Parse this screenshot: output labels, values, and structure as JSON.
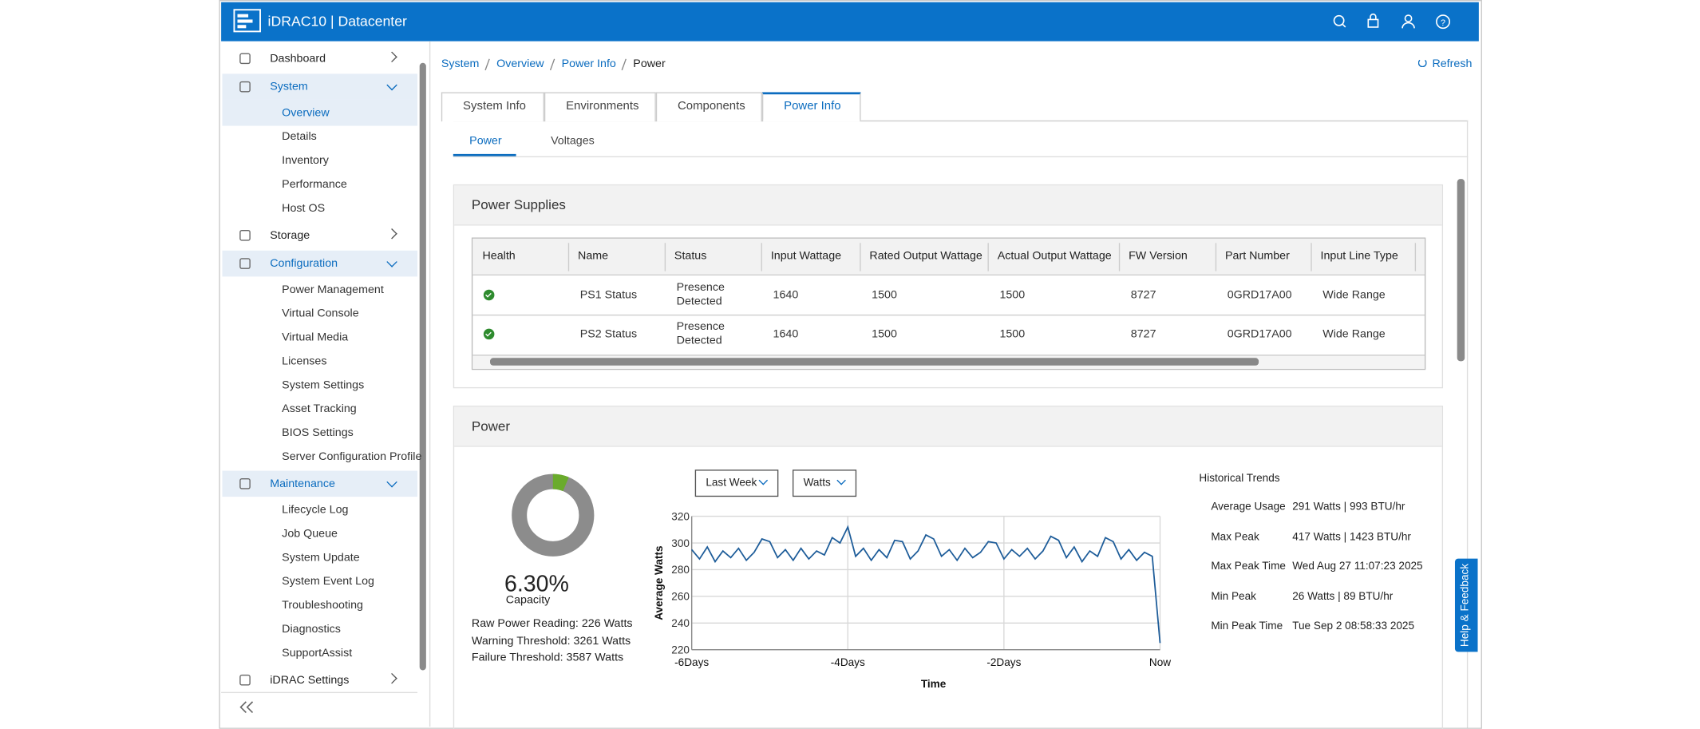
{
  "header": {
    "title": "iDRAC10 | Datacenter"
  },
  "sidebar": {
    "items": [
      {
        "label": "Dashboard"
      },
      {
        "label": "System",
        "children": [
          "Overview",
          "Details",
          "Inventory",
          "Performance",
          "Host OS"
        ]
      },
      {
        "label": "Storage"
      },
      {
        "label": "Configuration",
        "children": [
          "Power Management",
          "Virtual Console",
          "Virtual Media",
          "Licenses",
          "System Settings",
          "Asset Tracking",
          "BIOS Settings",
          "Server Configuration Profile"
        ]
      },
      {
        "label": "Maintenance",
        "children": [
          "Lifecycle Log",
          "Job Queue",
          "System Update",
          "System Event Log",
          "Troubleshooting",
          "Diagnostics",
          "SupportAssist"
        ]
      },
      {
        "label": "iDRAC Settings"
      }
    ]
  },
  "breadcrumb": [
    "System",
    "Overview",
    "Power Info",
    "Power"
  ],
  "refresh": "Refresh",
  "tabs": [
    "System Info",
    "Environments",
    "Components",
    "Power Info"
  ],
  "subtabs": [
    "Power",
    "Voltages"
  ],
  "power_supplies": {
    "title": "Power Supplies",
    "table": {
      "columns": [
        "Health",
        "Name",
        "Status",
        "Input Wattage",
        "Rated Output Wattage",
        "Actual Output Wattage",
        "FW Version",
        "Part Number",
        "Input Line Type"
      ],
      "rows": [
        [
          "PS1 Status",
          "Presence Detected",
          1640,
          1500,
          1500,
          8727,
          "0GRD17A00",
          "Wide Range"
        ],
        [
          "PS2 Status",
          "Presence Detected",
          1640,
          1500,
          1500,
          8727,
          "0GRD17A00",
          "Wide Range"
        ]
      ]
    }
  },
  "power": {
    "title": "Power",
    "capacity_label": "Capacity",
    "readings": [
      "Raw Power Reading: 226 Watts",
      "Warning Threshold: 3261 Watts",
      "Failure Threshold: 3587 Watts"
    ],
    "dropdowns": [
      "Last Week",
      "Watts"
    ],
    "trends": {
      "title": "Historical Trends",
      "rows": [
        [
          "Average Usage",
          "291 Watts | 993 BTU/hr"
        ],
        [
          "Max Peak",
          "417 Watts | 1423 BTU/hr"
        ],
        [
          "Max Peak Time",
          "Wed Aug 27 11:07:23 2025"
        ],
        [
          "Min Peak",
          "26 Watts | 89 BTU/hr"
        ],
        [
          "Min Peak Time",
          "Tue Sep 2 08:58:33 2025"
        ]
      ]
    }
  },
  "help": "Help & Feedback",
  "chart_data": [
    {
      "type": "donut",
      "values": [
        6.3
      ],
      "value_labels": [
        "6.30%"
      ],
      "color": "#6aab2c"
    },
    {
      "type": "line",
      "x_label": "Time",
      "y_label": "Average Watts",
      "x": [
        -6,
        -5.9,
        -5.8,
        -5.7,
        -5.6,
        -5.5,
        -5.4,
        -5.3,
        -5.2,
        -5.1,
        -5,
        -4.9,
        -4.8,
        -4.7,
        -4.6,
        -4.5,
        -4.4,
        -4.3,
        -4.2,
        -4.1,
        -4,
        -3.9,
        -3.8,
        -3.7,
        -3.6,
        -3.5,
        -3.4,
        -3.3,
        -3.2,
        -3.1,
        -3,
        -2.9,
        -2.8,
        -2.7,
        -2.6,
        -2.5,
        -2.4,
        -2.3,
        -2.2,
        -2.1,
        -2,
        -1.9,
        -1.8,
        -1.7,
        -1.6,
        -1.5,
        -1.4,
        -1.3,
        -1.2,
        -1.1,
        -1,
        -0.9,
        -0.8,
        -0.7,
        -0.6,
        -0.5,
        -0.4,
        -0.3,
        -0.2,
        -0.1,
        0
      ],
      "series": [
        {
          "color": "#1d5c99",
          "values": [
            295,
            288,
            297,
            286,
            294,
            289,
            296,
            287,
            293,
            303,
            301,
            289,
            295,
            287,
            296,
            288,
            294,
            291,
            304,
            300,
            312,
            290,
            296,
            287,
            295,
            289,
            302,
            301,
            288,
            294,
            306,
            303,
            290,
            295,
            287,
            296,
            289,
            293,
            301,
            300,
            288,
            295,
            290,
            296,
            288,
            294,
            305,
            302,
            289,
            297,
            286,
            294,
            290,
            304,
            301,
            288,
            295,
            287,
            293,
            290,
            225
          ]
        }
      ],
      "xlim": [
        -6,
        0
      ],
      "xticks": [
        {
          "value": -6,
          "label": "-6Days"
        },
        {
          "value": -4,
          "label": "-4Days"
        },
        {
          "value": -2,
          "label": "-2Days"
        },
        {
          "value": 0,
          "label": "Now"
        }
      ],
      "ylim": [
        220,
        320
      ],
      "yticks": [
        220,
        240,
        260,
        280,
        300,
        320
      ],
      "grid": true
    }
  ]
}
